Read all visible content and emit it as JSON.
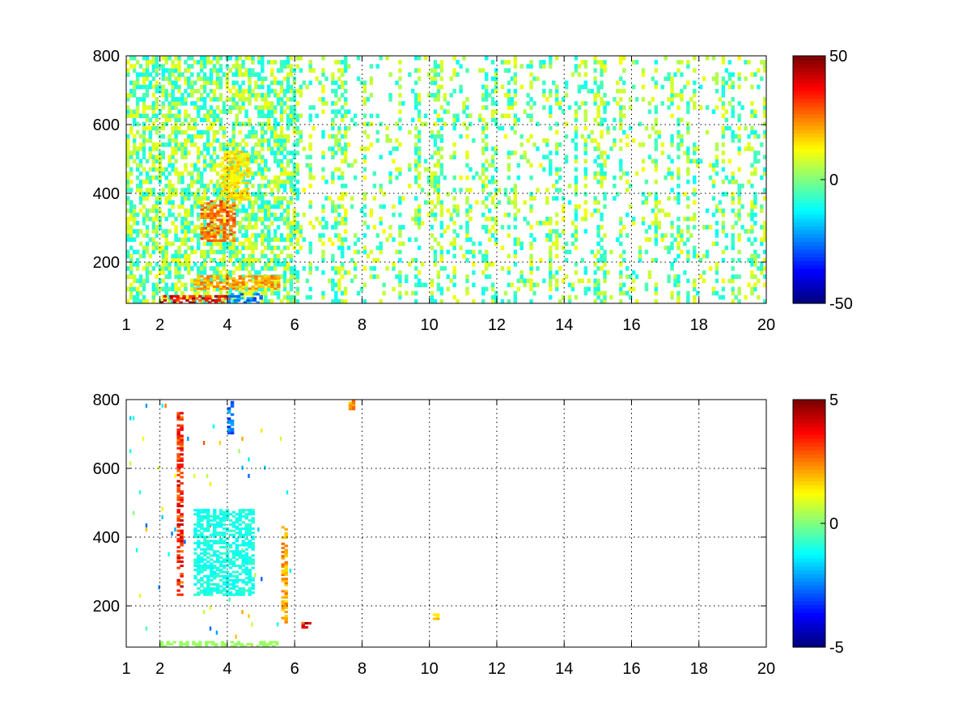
{
  "chart_data": [
    {
      "type": "heatmap",
      "title": "",
      "xlabel": "",
      "ylabel": "",
      "xlim": [
        1,
        20
      ],
      "ylim": [
        80,
        800
      ],
      "x_ticks": [
        1,
        2,
        4,
        6,
        8,
        10,
        12,
        14,
        16,
        18,
        20
      ],
      "y_ticks": [
        200,
        400,
        600,
        800
      ],
      "grid": true,
      "colormap": "jet",
      "clim": [
        -50,
        50
      ],
      "colorbar_ticks": [
        -50,
        0,
        50
      ],
      "description_of_field": "sparse scattered values mostly near 0 (cyan-green); dense region x 1-6 with warm band near y 280-520 around x 3-4.5 and hot strip along y 80-150 for x 2-5.5; vertical stripes of values -10 to 10 for x 6-20",
      "hotspots": [
        {
          "x": [
            2.0,
            4.0
          ],
          "y": [
            80,
            100
          ],
          "value": 45
        },
        {
          "x": [
            3.2,
            4.2
          ],
          "y": [
            260,
            380
          ],
          "value": 30
        },
        {
          "x": [
            3.8,
            4.6
          ],
          "y": [
            380,
            520
          ],
          "value": 18
        },
        {
          "x": [
            3.0,
            5.5
          ],
          "y": [
            120,
            160
          ],
          "value": 25
        },
        {
          "x": [
            4.0,
            5.0
          ],
          "y": [
            80,
            110
          ],
          "value": -30
        }
      ]
    },
    {
      "type": "heatmap",
      "title": "",
      "xlabel": "",
      "ylabel": "",
      "xlim": [
        1,
        20
      ],
      "ylim": [
        80,
        800
      ],
      "x_ticks": [
        1,
        2,
        4,
        6,
        8,
        10,
        12,
        14,
        16,
        18,
        20
      ],
      "y_ticks": [
        200,
        400,
        600,
        800
      ],
      "grid": true,
      "colormap": "jet",
      "clim": [
        -5,
        5
      ],
      "colorbar_ticks": [
        -5,
        0,
        5
      ],
      "hotspots": [
        {
          "x": [
            2.0,
            5.5
          ],
          "y": [
            80,
            95
          ],
          "value": 0.3
        },
        {
          "x": [
            3.0,
            4.8
          ],
          "y": [
            230,
            480
          ],
          "value": -1.2
        },
        {
          "x": [
            2.5,
            2.6
          ],
          "y": [
            230,
            760
          ],
          "value": 4
        },
        {
          "x": [
            5.6,
            5.7
          ],
          "y": [
            150,
            430
          ],
          "value": 2.5
        },
        {
          "x": [
            4.0,
            4.1
          ],
          "y": [
            700,
            800
          ],
          "value": -3
        },
        {
          "x": [
            7.6,
            7.7
          ],
          "y": [
            770,
            800
          ],
          "value": 2.5
        },
        {
          "x": [
            6.2,
            6.4
          ],
          "y": [
            135,
            150
          ],
          "value": 4.5
        },
        {
          "x": [
            10.1,
            10.3
          ],
          "y": [
            160,
            175
          ],
          "value": 2
        }
      ]
    }
  ]
}
